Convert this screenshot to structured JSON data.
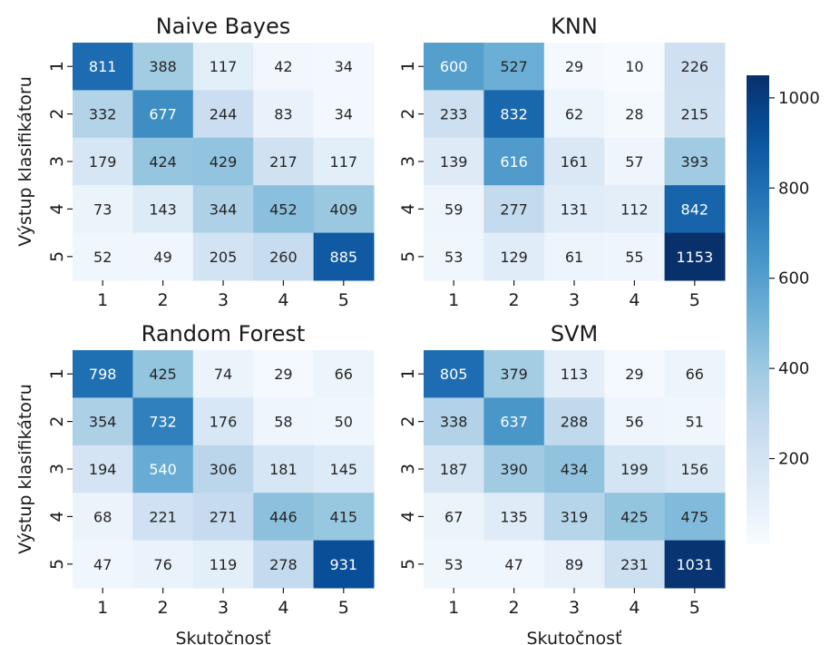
{
  "chart_data": {
    "type": "heatmap",
    "row_categories": [
      "1",
      "2",
      "3",
      "4",
      "5"
    ],
    "col_categories": [
      "1",
      "2",
      "3",
      "4",
      "5"
    ],
    "xlabel": "Skutočnosť",
    "ylabel": "Výstup klasifikátoru",
    "colormap": "Blues",
    "vmin": 10,
    "vmax": 1050,
    "colorbar_ticks": [
      200,
      400,
      600,
      800,
      1000
    ],
    "colors": {
      "low": "#f7fbff",
      "high": "#08306b"
    },
    "panels": [
      {
        "title": "Naive Bayes",
        "matrix": [
          [
            811,
            388,
            117,
            42,
            34
          ],
          [
            332,
            677,
            244,
            83,
            34
          ],
          [
            179,
            424,
            429,
            217,
            117
          ],
          [
            73,
            143,
            344,
            452,
            409
          ],
          [
            52,
            49,
            205,
            260,
            885
          ]
        ]
      },
      {
        "title": "KNN",
        "matrix": [
          [
            600,
            527,
            29,
            10,
            226
          ],
          [
            233,
            832,
            62,
            28,
            215
          ],
          [
            139,
            616,
            161,
            57,
            393
          ],
          [
            59,
            277,
            131,
            112,
            842
          ],
          [
            53,
            129,
            61,
            55,
            1153
          ]
        ]
      },
      {
        "title": "Random Forest",
        "matrix": [
          [
            798,
            425,
            74,
            29,
            66
          ],
          [
            354,
            732,
            176,
            58,
            50
          ],
          [
            194,
            540,
            306,
            181,
            145
          ],
          [
            68,
            221,
            271,
            446,
            415
          ],
          [
            47,
            76,
            119,
            278,
            931
          ]
        ]
      },
      {
        "title": "SVM",
        "matrix": [
          [
            805,
            379,
            113,
            29,
            66
          ],
          [
            338,
            637,
            288,
            56,
            51
          ],
          [
            187,
            390,
            434,
            199,
            156
          ],
          [
            67,
            135,
            319,
            425,
            475
          ],
          [
            53,
            47,
            89,
            231,
            1031
          ]
        ]
      }
    ]
  }
}
